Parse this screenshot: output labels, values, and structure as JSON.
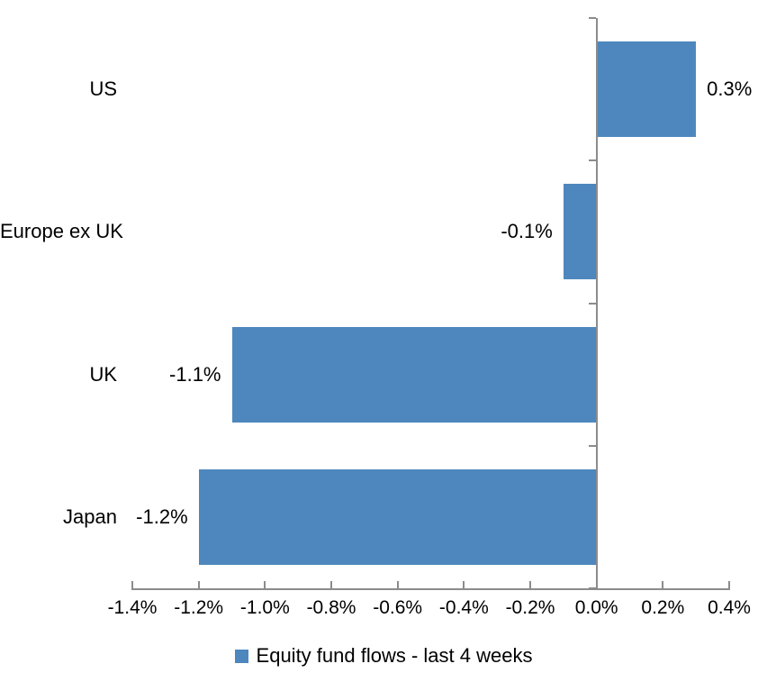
{
  "chart_data": {
    "type": "bar",
    "orientation": "horizontal",
    "title": "",
    "categories": [
      "US",
      "Europe ex UK",
      "UK",
      "Japan"
    ],
    "values": [
      0.3,
      -0.1,
      -1.1,
      -1.2
    ],
    "data_labels": [
      "0.3%",
      "-0.1%",
      "-1.1%",
      "-1.2%"
    ],
    "series_name": "Equity fund flows - last 4 weeks",
    "xlabel": "",
    "ylabel": "",
    "xlim": [
      -1.4,
      0.4
    ],
    "x_ticks": [
      -1.4,
      -1.2,
      -1.0,
      -0.8,
      -0.6,
      -0.4,
      -0.2,
      0.0,
      0.2,
      0.4
    ],
    "x_tick_labels": [
      "-1.4%",
      "-1.2%",
      "-1.0%",
      "-0.8%",
      "-0.6%",
      "-0.4%",
      "-0.2%",
      "0.0%",
      "0.2%",
      "0.4%"
    ],
    "unit": "percent",
    "grid": false,
    "legend_position": "bottom",
    "colors": {
      "bar": "#4D87BD",
      "axis": "#8C8C8C",
      "text": "#000000",
      "background": "#FFFFFF"
    }
  }
}
